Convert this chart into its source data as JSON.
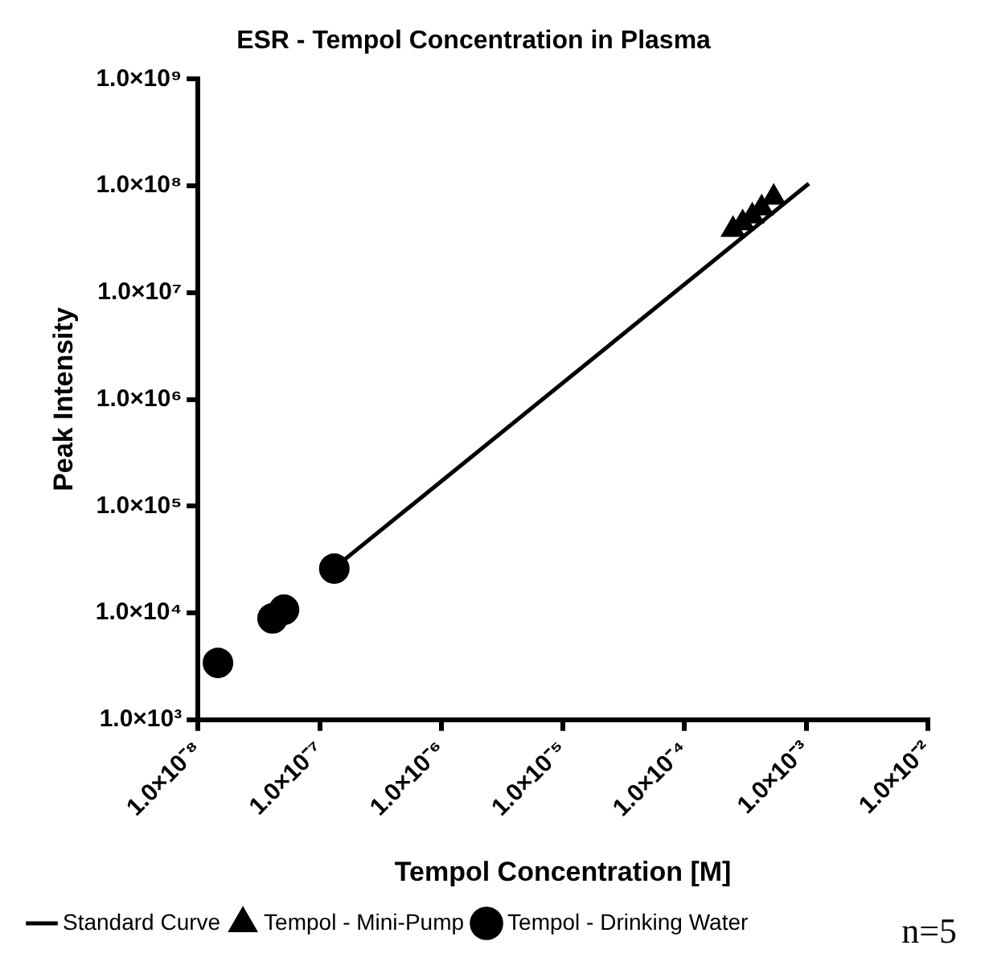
{
  "chart_data": {
    "type": "scatter",
    "title": "ESR - Tempol Concentration in Plasma",
    "xlabel": "Tempol Concentration [M]",
    "ylabel": "Peak Intensity",
    "log": "xy",
    "grid": false,
    "legend": "bottom left",
    "xlim": [
      1e-08,
      0.01
    ],
    "ylim": [
      1000,
      1000000000
    ],
    "xticks": [
      {
        "value": 1e-08,
        "label": "1.0×10⁻⁸"
      },
      {
        "value": 1e-07,
        "label": "1.0×10⁻⁷"
      },
      {
        "value": 1e-06,
        "label": "1.0×10⁻⁶"
      },
      {
        "value": 1e-05,
        "label": "1.0×10⁻⁵"
      },
      {
        "value": 0.0001,
        "label": "1.0×10⁻⁴"
      },
      {
        "value": 0.001,
        "label": "1.0×10⁻³"
      },
      {
        "value": 0.01,
        "label": "1.0×10⁻²"
      }
    ],
    "yticks": [
      {
        "value": 1000,
        "label": "1.0×10³"
      },
      {
        "value": 10000,
        "label": "1.0×10⁴"
      },
      {
        "value": 100000,
        "label": "1.0×10⁵"
      },
      {
        "value": 1000000,
        "label": "1.0×10⁶"
      },
      {
        "value": 10000000,
        "label": "1.0×10⁷"
      },
      {
        "value": 100000000,
        "label": "1.0×10⁸"
      },
      {
        "value": 1000000000,
        "label": "1.0×10⁹"
      }
    ],
    "series": [
      {
        "name": "Standard Curve",
        "type": "line",
        "marker": "none",
        "line_style": "solid",
        "color": "#000000",
        "x": [
          1.3e-07,
          0.00105
        ],
        "values": [
          26000,
          105000000
        ]
      },
      {
        "name": "Tempol - Mini-Pump",
        "marker": "triangle",
        "color": "#000000",
        "x": [
          0.00025,
          0.0003,
          0.00036,
          0.00043,
          0.00054
        ],
        "values": [
          39000000,
          45000000,
          52000000,
          62000000,
          78000000
        ]
      },
      {
        "name": "Tempol - Drinking Water",
        "marker": "circle",
        "color": "#000000",
        "x": [
          1.46e-08,
          4.1e-08,
          5.1e-08,
          1.32e-07
        ],
        "values": [
          3400,
          8900,
          10700,
          26000
        ]
      }
    ],
    "annotations": [
      "n=5"
    ]
  }
}
